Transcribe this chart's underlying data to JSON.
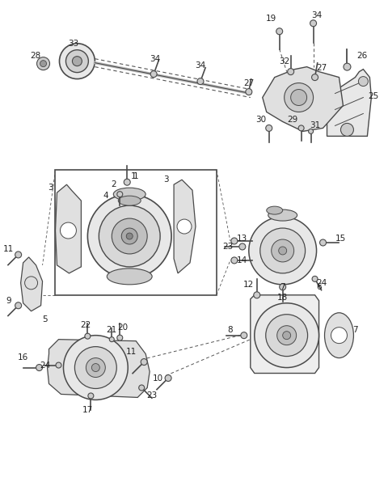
{
  "bg_color": "#ffffff",
  "lc": "#4a4a4a",
  "tc": "#222222",
  "fig_w": 4.8,
  "fig_h": 5.96,
  "dpi": 100
}
